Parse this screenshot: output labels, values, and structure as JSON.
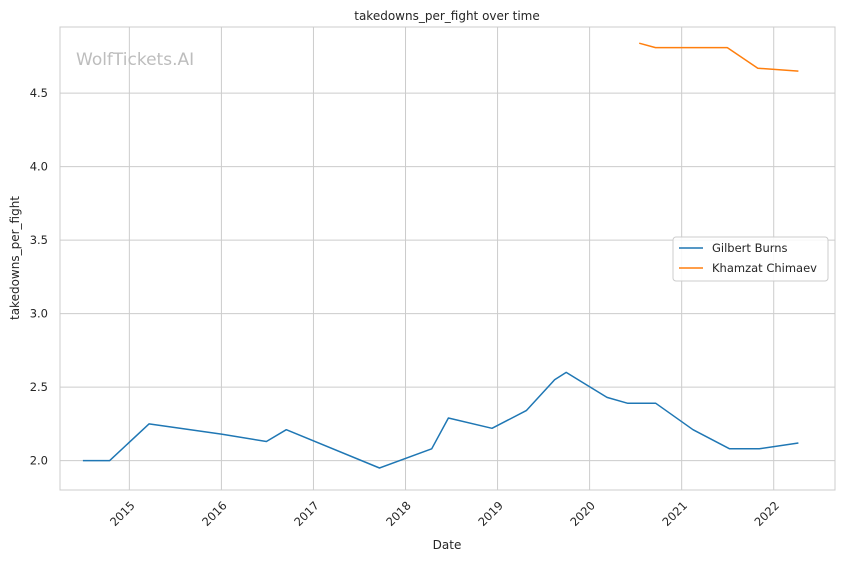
{
  "chart_data": {
    "type": "line",
    "title": "takedowns_per_fight over time",
    "xlabel": "Date",
    "ylabel": "takedowns_per_fight",
    "watermark": "WolfTickets.AI",
    "x_ticks": [
      "2015",
      "2016",
      "2017",
      "2018",
      "2019",
      "2020",
      "2021",
      "2022"
    ],
    "y_ticks": [
      "2.0",
      "2.5",
      "3.0",
      "3.5",
      "4.0",
      "4.5"
    ],
    "xlim": [
      "2014-04-01",
      "2022-09-01"
    ],
    "ylim": [
      1.8,
      4.95
    ],
    "grid": true,
    "legend_position": "center-right",
    "series": [
      {
        "name": "Gilbert Burns",
        "color": "#1f77b4",
        "points": [
          [
            "2014-07-01",
            2.0
          ],
          [
            "2014-10-15",
            2.0
          ],
          [
            "2015-03-20",
            2.25
          ],
          [
            "2016-01-01",
            2.18
          ],
          [
            "2016-06-28",
            2.13
          ],
          [
            "2016-09-15",
            2.21
          ],
          [
            "2017-09-20",
            1.95
          ],
          [
            "2018-04-15",
            2.08
          ],
          [
            "2018-06-20",
            2.29
          ],
          [
            "2018-12-10",
            2.22
          ],
          [
            "2019-04-25",
            2.34
          ],
          [
            "2019-08-15",
            2.55
          ],
          [
            "2019-09-30",
            2.6
          ],
          [
            "2020-03-10",
            2.43
          ],
          [
            "2020-06-01",
            2.39
          ],
          [
            "2020-09-20",
            2.39
          ],
          [
            "2021-02-15",
            2.21
          ],
          [
            "2021-07-10",
            2.08
          ],
          [
            "2021-11-05",
            2.08
          ],
          [
            "2022-04-09",
            2.12
          ]
        ]
      },
      {
        "name": "Khamzat Chimaev",
        "color": "#ff7f0e",
        "points": [
          [
            "2020-07-16",
            4.84
          ],
          [
            "2020-09-19",
            4.81
          ],
          [
            "2021-07-01",
            4.81
          ],
          [
            "2021-10-30",
            4.67
          ],
          [
            "2022-04-09",
            4.65
          ]
        ]
      }
    ]
  }
}
